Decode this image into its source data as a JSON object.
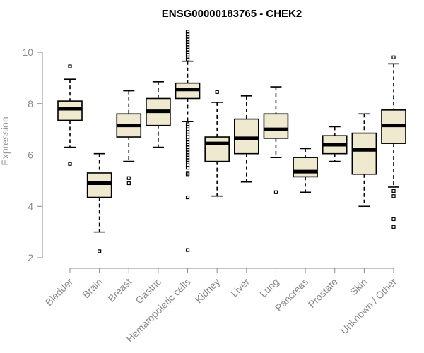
{
  "chart_data": {
    "type": "boxplot",
    "title": "ENSG00000183765 - CHEK2",
    "xlabel": "",
    "ylabel": "Expression",
    "ylim": [
      2,
      10.8
    ],
    "yticks": [
      2,
      4,
      6,
      8,
      10
    ],
    "box_color": "#efe9d0",
    "categories": [
      "Bladder",
      "Brain",
      "Breast",
      "Gastric",
      "Hematopoietic cells",
      "Kidney",
      "Liver",
      "Lung",
      "Pancreas",
      "Prostate",
      "Skin",
      "Unknown / Other"
    ],
    "boxes": [
      {
        "category": "Bladder",
        "whisker_low": 6.3,
        "q1": 7.35,
        "median": 7.8,
        "q3": 8.1,
        "whisker_high": 8.95,
        "outliers": [
          9.45,
          5.65
        ]
      },
      {
        "category": "Brain",
        "whisker_low": 3.0,
        "q1": 4.35,
        "median": 4.9,
        "q3": 5.3,
        "whisker_high": 6.05,
        "outliers": [
          2.25
        ]
      },
      {
        "category": "Breast",
        "whisker_low": 5.75,
        "q1": 6.7,
        "median": 7.15,
        "q3": 7.6,
        "whisker_high": 8.5,
        "outliers": [
          5.1,
          4.9
        ]
      },
      {
        "category": "Gastric",
        "whisker_low": 6.3,
        "q1": 7.15,
        "median": 7.7,
        "q3": 8.2,
        "whisker_high": 8.85,
        "outliers": []
      },
      {
        "category": "Hematopoietic cells",
        "whisker_low": 7.3,
        "q1": 8.2,
        "median": 8.55,
        "q3": 8.8,
        "whisker_high": 9.65,
        "outliers": [
          10.8,
          10.7,
          10.6,
          10.5,
          10.4,
          10.3,
          10.2,
          10.1,
          10.0,
          9.9,
          9.8,
          9.72,
          7.2,
          7.1,
          7.0,
          6.9,
          6.8,
          6.7,
          6.6,
          6.5,
          6.4,
          6.3,
          6.2,
          6.1,
          6.0,
          5.9,
          5.8,
          5.7,
          5.6,
          5.5,
          5.3,
          5.25,
          4.35,
          2.3
        ]
      },
      {
        "category": "Kidney",
        "whisker_low": 4.4,
        "q1": 5.75,
        "median": 6.45,
        "q3": 6.7,
        "whisker_high": 8.05,
        "outliers": [
          8.45
        ]
      },
      {
        "category": "Liver",
        "whisker_low": 4.95,
        "q1": 6.05,
        "median": 6.65,
        "q3": 7.4,
        "whisker_high": 8.3,
        "outliers": []
      },
      {
        "category": "Lung",
        "whisker_low": 5.9,
        "q1": 6.65,
        "median": 7.0,
        "q3": 7.6,
        "whisker_high": 8.65,
        "outliers": [
          4.55
        ]
      },
      {
        "category": "Pancreas",
        "whisker_low": 4.55,
        "q1": 5.15,
        "median": 5.35,
        "q3": 5.9,
        "whisker_high": 6.25,
        "outliers": []
      },
      {
        "category": "Prostate",
        "whisker_low": 5.75,
        "q1": 6.05,
        "median": 6.4,
        "q3": 6.75,
        "whisker_high": 7.1,
        "outliers": []
      },
      {
        "category": "Skin",
        "whisker_low": 4.0,
        "q1": 5.25,
        "median": 6.2,
        "q3": 6.85,
        "whisker_high": 7.6,
        "outliers": []
      },
      {
        "category": "Unknown / Other",
        "whisker_low": 4.75,
        "q1": 6.45,
        "median": 7.15,
        "q3": 7.75,
        "whisker_high": 9.55,
        "outliers": [
          9.8,
          4.6,
          4.4,
          3.5,
          3.2
        ]
      }
    ],
    "grid": false,
    "legend": "none"
  }
}
